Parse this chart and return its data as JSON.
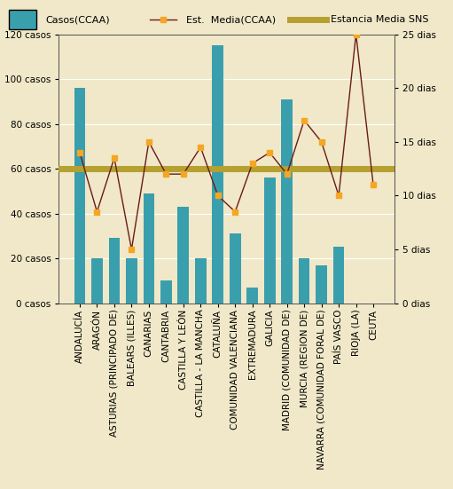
{
  "categories": [
    "ANDALUCÍA",
    "ARAGÓN",
    "ASTURIAS (PRINCIPADO DE)",
    "BALEARS (ILLES)",
    "CANARIAS",
    "CANTABRIA",
    "CASTILLA Y LEÓN",
    "CASTILLA - LA MANCHA",
    "CATALUÑA",
    "COMUNIDAD VALENCIANA",
    "EXTREMADURA",
    "GALICIA",
    "MADRID (COMUNIDAD DE)",
    "MURCIA (REGION DE)",
    "NAVARRA (COMUNIDAD FORAL DE)",
    "PAÍS VASCO",
    "RIOJA (LA)",
    "CEUTA"
  ],
  "casos": [
    96,
    20,
    29,
    20,
    49,
    10,
    43,
    20,
    115,
    31,
    7,
    56,
    91,
    20,
    17,
    25,
    0,
    0
  ],
  "estancia_media": [
    14,
    8.5,
    13.5,
    5,
    15,
    12,
    12,
    14.5,
    10,
    8.5,
    13,
    14,
    12,
    17,
    15,
    10,
    25,
    11
  ],
  "estancia_sns": 12.5,
  "bar_color": "#3a9fad",
  "line_color": "#6b1a1a",
  "marker_color": "#f5a623",
  "sns_color": "#b5a030",
  "bg_color": "#f0e8c8",
  "legend_bg": "#ffffff",
  "left_ylim": [
    0,
    120
  ],
  "right_ylim": [
    0,
    25
  ],
  "left_yticks": [
    0,
    20,
    40,
    60,
    80,
    100,
    120
  ],
  "right_yticks": [
    0,
    5,
    10,
    15,
    20,
    25
  ],
  "left_ytick_labels": [
    "0 casos",
    "20 casos",
    "40 casos",
    "60 casos",
    "80 casos",
    "100 casos",
    "120 casos"
  ],
  "right_ytick_labels": [
    "0 dias",
    "5 dias",
    "10 dias",
    "15 dias",
    "20 dias",
    "25 dias"
  ],
  "legend_casos": "Casos(CCAA)",
  "legend_est": "Est.  Media(CCAA)",
  "legend_sns": "Estancia Media SNS",
  "tick_fontsize": 7.5,
  "bar_width": 0.65
}
